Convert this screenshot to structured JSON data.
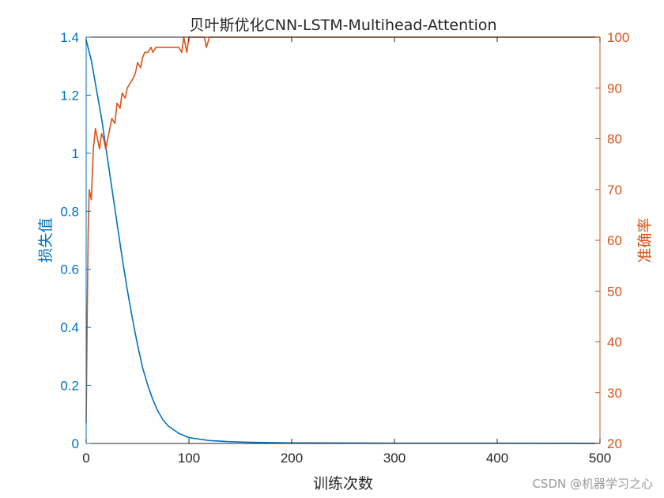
{
  "chart_data": {
    "type": "line",
    "title": "贝叶斯优化CNN-LSTM-Multihead-Attention",
    "xlabel": "训练次数",
    "ylabel_left": "损失值",
    "ylabel_right": "准确率",
    "xlim": [
      0,
      500
    ],
    "ylim_left": [
      0,
      1.4
    ],
    "ylim_right": [
      20,
      100
    ],
    "x_ticks": [
      "0",
      "100",
      "200",
      "300",
      "400",
      "500"
    ],
    "y_left_ticks": [
      "0",
      "0.2",
      "0.4",
      "0.6",
      "0.8",
      "1",
      "1.2",
      "1.4"
    ],
    "y_right_ticks": [
      "20",
      "30",
      "40",
      "50",
      "60",
      "70",
      "80",
      "90",
      "100"
    ],
    "grid": false,
    "colors": {
      "loss": "#0072BD",
      "accuracy": "#D95319",
      "axis": "#262626"
    },
    "series": [
      {
        "axis": "left",
        "x": [
          0,
          5,
          10,
          15,
          20,
          25,
          30,
          35,
          40,
          45,
          50,
          55,
          60,
          65,
          70,
          75,
          80,
          90,
          100,
          110,
          120,
          140,
          160,
          180,
          200,
          250,
          300,
          400,
          500
        ],
        "y": [
          1.39,
          1.32,
          1.22,
          1.12,
          1.0,
          0.88,
          0.76,
          0.64,
          0.53,
          0.43,
          0.34,
          0.26,
          0.2,
          0.15,
          0.11,
          0.08,
          0.06,
          0.035,
          0.02,
          0.015,
          0.01,
          0.006,
          0.004,
          0.003,
          0.002,
          0.0015,
          0.001,
          0.0008,
          0.0005
        ]
      },
      {
        "axis": "right",
        "x": [
          0,
          1,
          2,
          3,
          5,
          7,
          9,
          11,
          13,
          15,
          17,
          19,
          21,
          23,
          25,
          28,
          30,
          33,
          35,
          38,
          40,
          43,
          46,
          48,
          50,
          53,
          55,
          57,
          60,
          63,
          65,
          68,
          70,
          75,
          80,
          85,
          90,
          93,
          95,
          98,
          100,
          105,
          110,
          115,
          117,
          120,
          130,
          500
        ],
        "y": [
          24,
          45,
          62,
          70,
          68,
          78,
          82,
          80,
          78,
          81,
          80,
          78,
          80,
          82,
          84,
          83,
          87,
          86,
          89,
          88,
          90,
          91,
          92,
          93,
          95,
          94,
          96,
          97,
          97,
          98,
          97,
          98,
          98,
          98,
          98,
          98,
          98,
          97,
          100,
          97,
          100,
          100,
          100,
          100,
          98,
          100,
          100,
          100
        ]
      }
    ]
  },
  "watermark": "CSDN @机器学习之心"
}
